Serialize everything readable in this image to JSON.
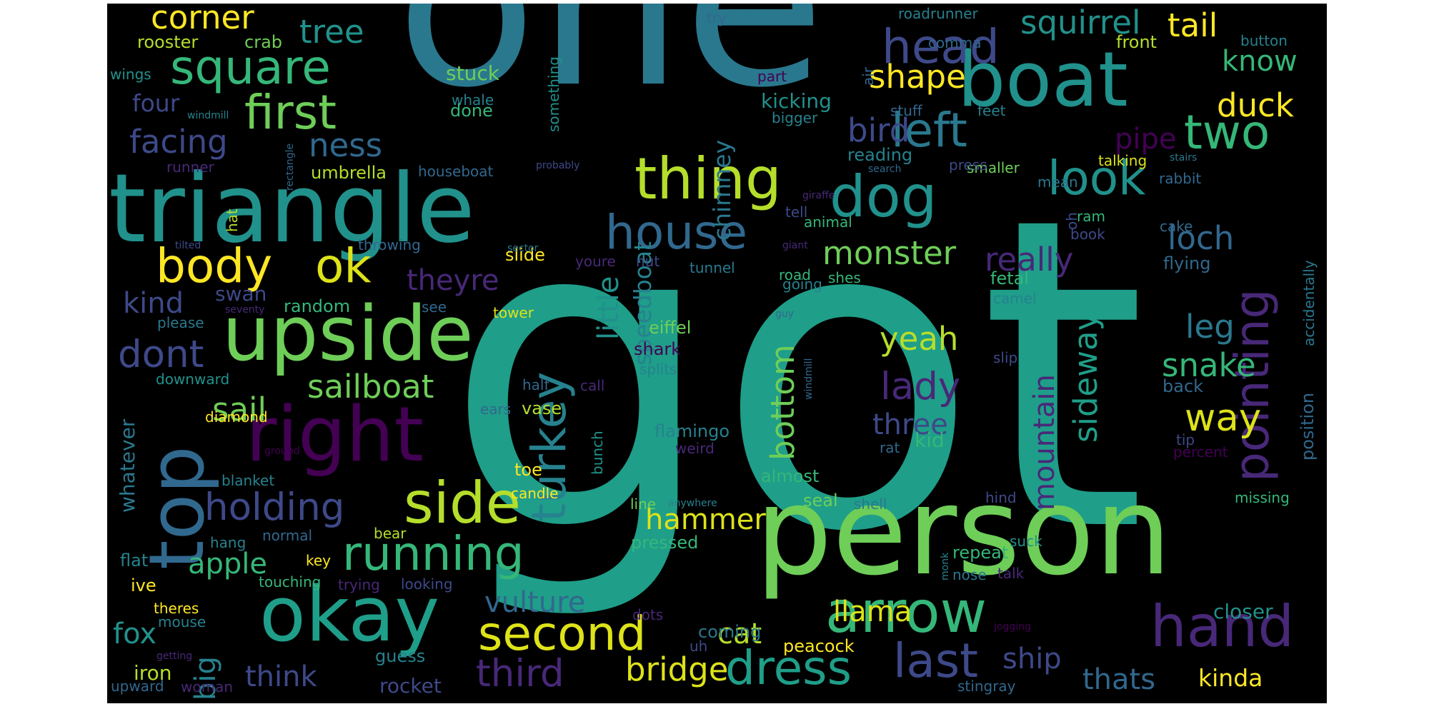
{
  "palette": [
    "#440154",
    "#482878",
    "#3e4989",
    "#31688e",
    "#26828e",
    "#1f9e89",
    "#35b779",
    "#6ece58",
    "#b5de2b",
    "#fde725"
  ],
  "words": [
    {
      "text": "got",
      "color": "#1f9e89",
      "vertical": false
    },
    {
      "text": "one",
      "color": "#2a788e",
      "vertical": false
    },
    {
      "text": "person",
      "color": "#6ece58",
      "vertical": false
    },
    {
      "text": "triangle",
      "color": "#21918c",
      "vertical": false
    },
    {
      "text": "boat",
      "color": "#21918c",
      "vertical": false
    },
    {
      "text": "upside",
      "color": "#6ece58",
      "vertical": false
    },
    {
      "text": "okay",
      "color": "#1f9e89",
      "vertical": false
    },
    {
      "text": "right",
      "color": "#440154",
      "vertical": false
    },
    {
      "text": "top",
      "color": "#31688e",
      "vertical": true
    },
    {
      "text": "side",
      "color": "#b5de2b",
      "vertical": false
    },
    {
      "text": "dog",
      "color": "#21918c",
      "vertical": false
    },
    {
      "text": "thing",
      "color": "#b5de2b",
      "vertical": false
    },
    {
      "text": "arrow",
      "color": "#35b779",
      "vertical": false
    },
    {
      "text": "hand",
      "color": "#482878",
      "vertical": false
    },
    {
      "text": "square",
      "color": "#35b779",
      "vertical": false
    },
    {
      "text": "left",
      "color": "#2a788e",
      "vertical": false
    },
    {
      "text": "two",
      "color": "#35b779",
      "vertical": false
    },
    {
      "text": "look",
      "color": "#21918c",
      "vertical": false
    },
    {
      "text": "house",
      "color": "#31688e",
      "vertical": false
    },
    {
      "text": "second",
      "color": "#dde318",
      "vertical": false
    },
    {
      "text": "body",
      "color": "#fde725",
      "vertical": false
    },
    {
      "text": "ok",
      "color": "#dde318",
      "vertical": false
    },
    {
      "text": "running",
      "color": "#35b779",
      "vertical": false
    },
    {
      "text": "turkey",
      "color": "#26828e",
      "vertical": true
    },
    {
      "text": "pointing",
      "color": "#482878",
      "vertical": true
    },
    {
      "text": "head",
      "color": "#3e4989",
      "vertical": false
    },
    {
      "text": "first",
      "color": "#6ece58",
      "vertical": false
    },
    {
      "text": "dress",
      "color": "#1f9e89",
      "vertical": false
    },
    {
      "text": "last",
      "color": "#3e4989",
      "vertical": false
    },
    {
      "text": "holding",
      "color": "#3e4989",
      "vertical": false
    },
    {
      "text": "third",
      "color": "#482878",
      "vertical": false
    },
    {
      "text": "bridge",
      "color": "#dde318",
      "vertical": false
    },
    {
      "text": "corner",
      "color": "#fde725",
      "vertical": false
    },
    {
      "text": "tree",
      "color": "#21918c",
      "vertical": false
    },
    {
      "text": "squirrel",
      "color": "#21918c",
      "vertical": false
    },
    {
      "text": "tail",
      "color": "#fde725",
      "vertical": false
    },
    {
      "text": "shape",
      "color": "#fde725",
      "vertical": false
    },
    {
      "text": "duck",
      "color": "#fde725",
      "vertical": false
    },
    {
      "text": "know",
      "color": "#35b779",
      "vertical": false
    },
    {
      "text": "bird",
      "color": "#3e4989",
      "vertical": false
    },
    {
      "text": "facing",
      "color": "#3e4989",
      "vertical": false
    },
    {
      "text": "ness",
      "color": "#31688e",
      "vertical": false
    },
    {
      "text": "monster",
      "color": "#6ece58",
      "vertical": false
    },
    {
      "text": "really",
      "color": "#482878",
      "vertical": false
    },
    {
      "text": "loch",
      "color": "#31688e",
      "vertical": false
    },
    {
      "text": "theyre",
      "color": "#482878",
      "vertical": false
    },
    {
      "text": "kind",
      "color": "#3e4989",
      "vertical": false
    },
    {
      "text": "sailboat",
      "color": "#6ece58",
      "vertical": false
    },
    {
      "text": "dont",
      "color": "#3e4989",
      "vertical": false
    },
    {
      "text": "sail",
      "color": "#6ece58",
      "vertical": false
    },
    {
      "text": "lady",
      "color": "#482878",
      "vertical": false
    },
    {
      "text": "yeah",
      "color": "#b5de2b",
      "vertical": false
    },
    {
      "text": "leg",
      "color": "#2a788e",
      "vertical": false
    },
    {
      "text": "snake",
      "color": "#35b779",
      "vertical": false
    },
    {
      "text": "way",
      "color": "#dde318",
      "vertical": false
    },
    {
      "text": "three",
      "color": "#3e4989",
      "vertical": false
    },
    {
      "text": "bottom",
      "color": "#6ece58",
      "vertical": true
    },
    {
      "text": "mountain",
      "color": "#482878",
      "vertical": true
    },
    {
      "text": "sideways",
      "color": "#1f9e89",
      "vertical": true
    },
    {
      "text": "little",
      "color": "#21918c",
      "vertical": true
    },
    {
      "text": "speedboat",
      "color": "#26828e",
      "vertical": true
    },
    {
      "text": "chimney",
      "color": "#2a788e",
      "vertical": true
    },
    {
      "text": "hammer",
      "color": "#dde318",
      "vertical": false
    },
    {
      "text": "apple",
      "color": "#35b779",
      "vertical": false
    },
    {
      "text": "big",
      "color": "#26828e",
      "vertical": true
    },
    {
      "text": "vulture",
      "color": "#31688e",
      "vertical": false
    },
    {
      "text": "cat",
      "color": "#b5de2b",
      "vertical": false
    },
    {
      "text": "llama",
      "color": "#dde318",
      "vertical": false
    },
    {
      "text": "fox",
      "color": "#21918c",
      "vertical": false
    },
    {
      "text": "think",
      "color": "#3e4989",
      "vertical": false
    },
    {
      "text": "ship",
      "color": "#3e4989",
      "vertical": false
    },
    {
      "text": "thats",
      "color": "#31688e",
      "vertical": false
    },
    {
      "text": "kinda",
      "color": "#fde725",
      "vertical": false
    },
    {
      "text": "rooster",
      "color": "#b5de2b",
      "vertical": false
    },
    {
      "text": "crab",
      "color": "#6ece58",
      "vertical": false
    },
    {
      "text": "four",
      "color": "#3e4989",
      "vertical": false
    },
    {
      "text": "wings",
      "color": "#21918c",
      "vertical": false
    },
    {
      "text": "umbrella",
      "color": "#b5de2b",
      "vertical": false
    },
    {
      "text": "houseboat",
      "color": "#31688e",
      "vertical": false
    },
    {
      "text": "runner",
      "color": "#482878",
      "vertical": false
    },
    {
      "text": "swan",
      "color": "#3e4989",
      "vertical": false
    },
    {
      "text": "random",
      "color": "#35b779",
      "vertical": false
    },
    {
      "text": "please",
      "color": "#2a788e",
      "vertical": false
    },
    {
      "text": "stuck",
      "color": "#6ece58",
      "vertical": false
    },
    {
      "text": "whale",
      "color": "#26828e",
      "vertical": false
    },
    {
      "text": "done",
      "color": "#35b779",
      "vertical": false
    },
    {
      "text": "kicking",
      "color": "#21918c",
      "vertical": false
    },
    {
      "text": "bigger",
      "color": "#26828e",
      "vertical": false
    },
    {
      "text": "reading",
      "color": "#26828e",
      "vertical": false
    },
    {
      "text": "smaller",
      "color": "#6ece58",
      "vertical": false
    },
    {
      "text": "talking",
      "color": "#dde318",
      "vertical": false
    },
    {
      "text": "rabbit",
      "color": "#31688e",
      "vertical": false
    },
    {
      "text": "pipe",
      "color": "#440154",
      "vertical": false
    },
    {
      "text": "cake",
      "color": "#31688e",
      "vertical": false
    },
    {
      "text": "flying",
      "color": "#31688e",
      "vertical": false
    },
    {
      "text": "fetal",
      "color": "#35b779",
      "vertical": false
    },
    {
      "text": "camel",
      "color": "#26828e",
      "vertical": false
    },
    {
      "text": "eiffel",
      "color": "#6ece58",
      "vertical": false
    },
    {
      "text": "tower",
      "color": "#dde318",
      "vertical": false
    },
    {
      "text": "shark",
      "color": "#440154",
      "vertical": false
    },
    {
      "text": "splits",
      "color": "#26828e",
      "vertical": false
    },
    {
      "text": "slide",
      "color": "#fde725",
      "vertical": false
    },
    {
      "text": "road",
      "color": "#35b779",
      "vertical": false
    },
    {
      "text": "shes",
      "color": "#35b779",
      "vertical": false
    },
    {
      "text": "flamingo",
      "color": "#26828e",
      "vertical": false
    },
    {
      "text": "almost",
      "color": "#35b779",
      "vertical": false
    },
    {
      "text": "seal",
      "color": "#6ece58",
      "vertical": false
    },
    {
      "text": "shell",
      "color": "#2a788e",
      "vertical": false
    },
    {
      "text": "whatever",
      "color": "#2a788e",
      "vertical": true
    },
    {
      "text": "downward",
      "color": "#21918c",
      "vertical": false
    },
    {
      "text": "diamond",
      "color": "#fde725",
      "vertical": false
    },
    {
      "text": "ears",
      "color": "#31688e",
      "vertical": false
    },
    {
      "text": "half",
      "color": "#31688e",
      "vertical": false
    },
    {
      "text": "call",
      "color": "#482878",
      "vertical": false
    },
    {
      "text": "vase",
      "color": "#b5de2b",
      "vertical": false
    },
    {
      "text": "kid",
      "color": "#35b779",
      "vertical": false
    },
    {
      "text": "rat",
      "color": "#31688e",
      "vertical": false
    },
    {
      "text": "tip",
      "color": "#3e4989",
      "vertical": false
    },
    {
      "text": "back",
      "color": "#31688e",
      "vertical": false
    },
    {
      "text": "position",
      "color": "#31688e",
      "vertical": true
    },
    {
      "text": "accidentally",
      "color": "#2a788e",
      "vertical": true
    },
    {
      "text": "percent",
      "color": "#440154",
      "vertical": false
    },
    {
      "text": "missing",
      "color": "#35b779",
      "vertical": false
    },
    {
      "text": "hind",
      "color": "#3e4989",
      "vertical": false
    },
    {
      "text": "blanket",
      "color": "#26828e",
      "vertical": false
    },
    {
      "text": "bear",
      "color": "#b5de2b",
      "vertical": false
    },
    {
      "text": "toe",
      "color": "#fde725",
      "vertical": false
    },
    {
      "text": "candle",
      "color": "#fde725",
      "vertical": false
    },
    {
      "text": "hang",
      "color": "#26828e",
      "vertical": false
    },
    {
      "text": "normal",
      "color": "#31688e",
      "vertical": false
    },
    {
      "text": "flat",
      "color": "#26828e",
      "vertical": false
    },
    {
      "text": "key",
      "color": "#fde725",
      "vertical": false
    },
    {
      "text": "pressed",
      "color": "#35b779",
      "vertical": false
    },
    {
      "text": "line",
      "color": "#6ece58",
      "vertical": false
    },
    {
      "text": "anywhere",
      "color": "#26828e",
      "vertical": false
    },
    {
      "text": "repeat",
      "color": "#35b779",
      "vertical": false
    },
    {
      "text": "nose",
      "color": "#2a788e",
      "vertical": false
    },
    {
      "text": "talk",
      "color": "#482878",
      "vertical": false
    },
    {
      "text": "ive",
      "color": "#fde725",
      "vertical": false
    },
    {
      "text": "touching",
      "color": "#35b779",
      "vertical": false
    },
    {
      "text": "trying",
      "color": "#482878",
      "vertical": false
    },
    {
      "text": "looking",
      "color": "#3e4989",
      "vertical": false
    },
    {
      "text": "theres",
      "color": "#fde725",
      "vertical": false
    },
    {
      "text": "mouse",
      "color": "#26828e",
      "vertical": false
    },
    {
      "text": "dots",
      "color": "#482878",
      "vertical": false
    },
    {
      "text": "coming",
      "color": "#2a788e",
      "vertical": false
    },
    {
      "text": "uh",
      "color": "#3e4989",
      "vertical": false
    },
    {
      "text": "peacock",
      "color": "#fde725",
      "vertical": false
    },
    {
      "text": "jogging",
      "color": "#440154",
      "vertical": false
    },
    {
      "text": "closer",
      "color": "#21918c",
      "vertical": false
    },
    {
      "text": "getting",
      "color": "#482878",
      "vertical": false
    },
    {
      "text": "guess",
      "color": "#26828e",
      "vertical": false
    },
    {
      "text": "iron",
      "color": "#b5de2b",
      "vertical": false
    },
    {
      "text": "rocket",
      "color": "#3e4989",
      "vertical": false
    },
    {
      "text": "upward",
      "color": "#31688e",
      "vertical": false
    },
    {
      "text": "woman",
      "color": "#482878",
      "vertical": false
    },
    {
      "text": "stingray",
      "color": "#31688e",
      "vertical": false
    },
    {
      "text": "suck",
      "color": "#21918c",
      "vertical": false
    },
    {
      "text": "monk",
      "color": "#26828e",
      "vertical": true
    },
    {
      "text": "roadrunner",
      "color": "#26828e",
      "vertical": false
    },
    {
      "text": "try",
      "color": "#31688e",
      "vertical": false
    },
    {
      "text": "comma",
      "color": "#31688e",
      "vertical": false
    },
    {
      "text": "front",
      "color": "#b5de2b",
      "vertical": false
    },
    {
      "text": "button",
      "color": "#26828e",
      "vertical": false
    },
    {
      "text": "part",
      "color": "#440154",
      "vertical": false
    },
    {
      "text": "air",
      "color": "#31688e",
      "vertical": true
    },
    {
      "text": "something",
      "color": "#21918c",
      "vertical": true
    },
    {
      "text": "stuff",
      "color": "#31688e",
      "vertical": false
    },
    {
      "text": "feet",
      "color": "#26828e",
      "vertical": false
    },
    {
      "text": "stairs",
      "color": "#2a788e",
      "vertical": false
    },
    {
      "text": "windmill",
      "color": "#26828e",
      "vertical": false
    },
    {
      "text": "rectangle",
      "color": "#31688e",
      "vertical": true
    },
    {
      "text": "probably",
      "color": "#3e4989",
      "vertical": false
    },
    {
      "text": "search",
      "color": "#31688e",
      "vertical": false
    },
    {
      "text": "press",
      "color": "#3e4989",
      "vertical": false
    },
    {
      "text": "mean",
      "color": "#2a788e",
      "vertical": false
    },
    {
      "text": "giraffe",
      "color": "#482878",
      "vertical": false
    },
    {
      "text": "hat",
      "color": "#b5de2b",
      "vertical": true
    },
    {
      "text": "tell",
      "color": "#3e4989",
      "vertical": false
    },
    {
      "text": "animal",
      "color": "#35b779",
      "vertical": false
    },
    {
      "text": "oh",
      "color": "#3e4989",
      "vertical": true
    },
    {
      "text": "ram",
      "color": "#35b779",
      "vertical": false
    },
    {
      "text": "tilted",
      "color": "#3e4989",
      "vertical": false
    },
    {
      "text": "throwing",
      "color": "#31688e",
      "vertical": false
    },
    {
      "text": "sector",
      "color": "#2a788e",
      "vertical": false
    },
    {
      "text": "giant",
      "color": "#482878",
      "vertical": false
    },
    {
      "text": "book",
      "color": "#3e4989",
      "vertical": false
    },
    {
      "text": "youre",
      "color": "#482878",
      "vertical": false
    },
    {
      "text": "nut",
      "color": "#3e4989",
      "vertical": false
    },
    {
      "text": "tunnel",
      "color": "#2a788e",
      "vertical": false
    },
    {
      "text": "going",
      "color": "#26828e",
      "vertical": false
    },
    {
      "text": "see",
      "color": "#31688e",
      "vertical": false
    },
    {
      "text": "seventy",
      "color": "#482878",
      "vertical": false
    },
    {
      "text": "guy",
      "color": "#31688e",
      "vertical": false
    },
    {
      "text": "slip",
      "color": "#3e4989",
      "vertical": false
    },
    {
      "text": "windmill",
      "color": "#31688e",
      "vertical": true
    },
    {
      "text": "weird",
      "color": "#482878",
      "vertical": false
    },
    {
      "text": "ground",
      "color": "#440154",
      "vertical": false
    },
    {
      "text": "bunch",
      "color": "#21918c",
      "vertical": true
    }
  ]
}
